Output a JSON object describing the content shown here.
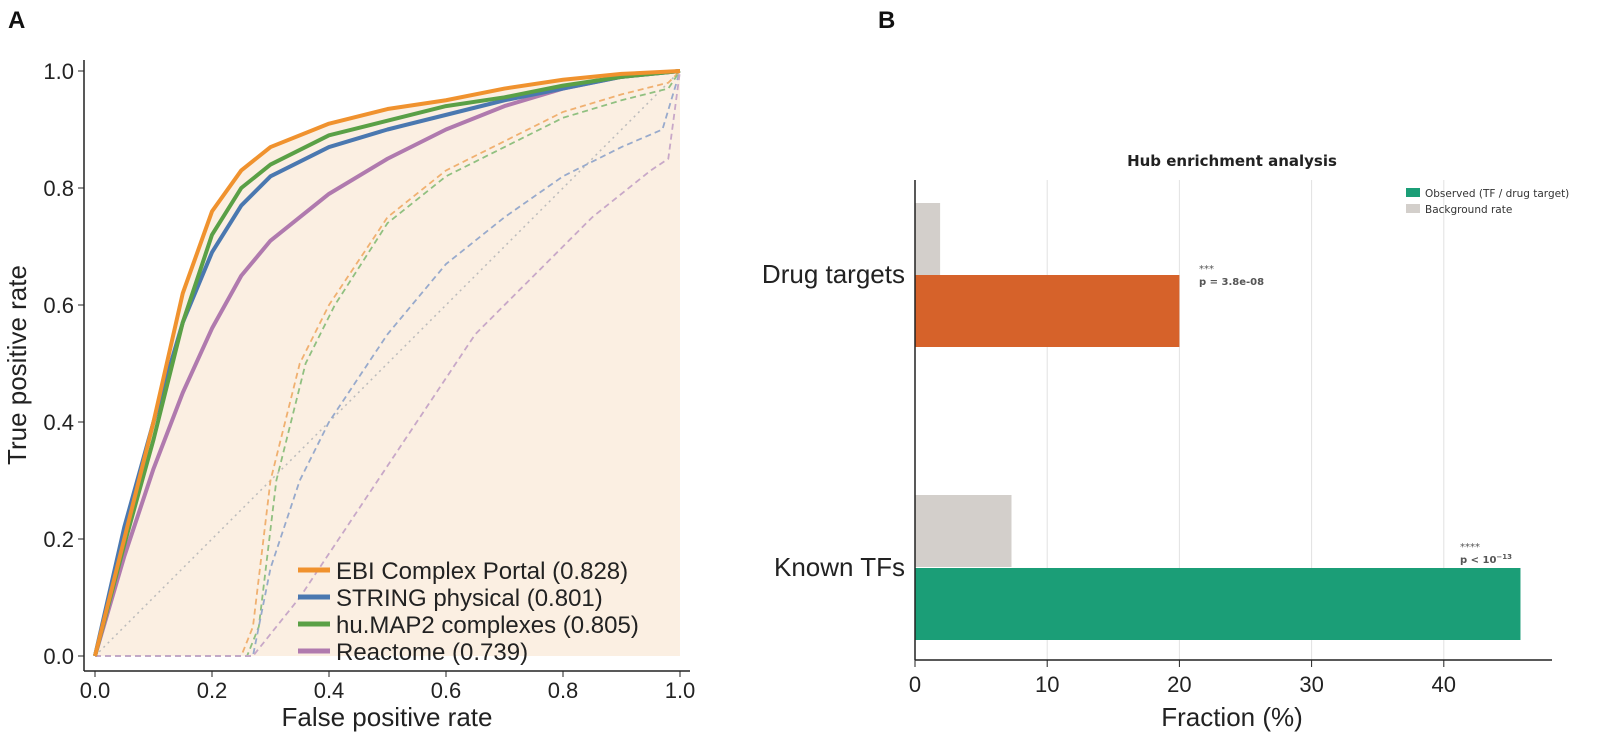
{
  "panel_labels": [
    "A",
    "B"
  ],
  "chart_data": [
    {
      "type": "line",
      "xlabel": "False positive rate",
      "ylabel": "True positive rate",
      "xlim": [
        0,
        1
      ],
      "ylim": [
        0,
        1
      ],
      "xticks": [
        "0.0",
        "0.2",
        "0.4",
        "0.6",
        "0.8",
        "1.0"
      ],
      "yticks": [
        "0.0",
        "0.2",
        "0.4",
        "0.6",
        "0.8",
        "1.0"
      ],
      "legend_position": "bottom-right",
      "series": [
        {
          "name": "EBI Complex Portal (0.828)",
          "color": "#F0922E",
          "style": "solid",
          "x": [
            0,
            0.02,
            0.05,
            0.1,
            0.15,
            0.2,
            0.25,
            0.3,
            0.4,
            0.5,
            0.6,
            0.7,
            0.8,
            0.9,
            1
          ],
          "y": [
            0,
            0.08,
            0.2,
            0.4,
            0.62,
            0.76,
            0.83,
            0.87,
            0.91,
            0.935,
            0.95,
            0.97,
            0.985,
            0.995,
            1
          ]
        },
        {
          "name": "STRING physical (0.801)",
          "color": "#4A78B0",
          "style": "solid",
          "x": [
            0,
            0.05,
            0.1,
            0.15,
            0.2,
            0.25,
            0.3,
            0.4,
            0.5,
            0.6,
            0.7,
            0.8,
            0.9,
            1
          ],
          "y": [
            0,
            0.22,
            0.4,
            0.57,
            0.69,
            0.77,
            0.82,
            0.87,
            0.9,
            0.925,
            0.95,
            0.97,
            0.99,
            1
          ]
        },
        {
          "name": "hu.MAP2 complexes (0.805)",
          "color": "#5AA046",
          "style": "solid",
          "x": [
            0,
            0.05,
            0.1,
            0.15,
            0.2,
            0.25,
            0.3,
            0.4,
            0.5,
            0.6,
            0.7,
            0.8,
            0.9,
            1
          ],
          "y": [
            0,
            0.19,
            0.37,
            0.57,
            0.72,
            0.8,
            0.84,
            0.89,
            0.915,
            0.94,
            0.955,
            0.975,
            0.99,
            1
          ]
        },
        {
          "name": "Reactome (0.739)",
          "color": "#B07AAE",
          "style": "solid",
          "x": [
            0,
            0.05,
            0.1,
            0.15,
            0.2,
            0.25,
            0.3,
            0.4,
            0.5,
            0.6,
            0.7,
            0.8,
            0.9,
            1
          ],
          "y": [
            0,
            0.17,
            0.32,
            0.45,
            0.56,
            0.65,
            0.71,
            0.79,
            0.85,
            0.9,
            0.94,
            0.97,
            0.99,
            1
          ]
        }
      ],
      "null_series": [
        {
          "color": "#F0B070",
          "x": [
            0,
            0.25,
            0.27,
            0.3,
            0.35,
            0.4,
            0.5,
            0.6,
            0.7,
            0.8,
            0.9,
            0.98,
            1
          ],
          "y": [
            0,
            0,
            0.05,
            0.3,
            0.5,
            0.6,
            0.75,
            0.83,
            0.88,
            0.93,
            0.96,
            0.98,
            1
          ]
        },
        {
          "color": "#90C080",
          "x": [
            0,
            0.26,
            0.28,
            0.31,
            0.36,
            0.41,
            0.5,
            0.6,
            0.7,
            0.8,
            0.9,
            0.98,
            1
          ],
          "y": [
            0,
            0,
            0.05,
            0.3,
            0.5,
            0.6,
            0.74,
            0.82,
            0.87,
            0.92,
            0.95,
            0.97,
            1
          ]
        },
        {
          "color": "#98AACC",
          "x": [
            0,
            0.27,
            0.3,
            0.35,
            0.4,
            0.5,
            0.6,
            0.7,
            0.8,
            0.9,
            0.97,
            1
          ],
          "y": [
            0,
            0,
            0.15,
            0.3,
            0.4,
            0.55,
            0.67,
            0.75,
            0.82,
            0.87,
            0.9,
            1
          ]
        },
        {
          "color": "#C8A8C8",
          "x": [
            0,
            0.27,
            0.35,
            0.45,
            0.55,
            0.65,
            0.75,
            0.85,
            0.95,
            0.98,
            1
          ],
          "y": [
            0,
            0,
            0.1,
            0.25,
            0.4,
            0.55,
            0.65,
            0.75,
            0.83,
            0.85,
            1
          ]
        }
      ]
    },
    {
      "type": "bar",
      "orientation": "horizontal",
      "title": "Hub enrichment analysis",
      "xlabel": "Fraction (%)",
      "xlim": [
        0,
        47
      ],
      "xticks": [
        "0",
        "10",
        "20",
        "30",
        "40"
      ],
      "categories": [
        "Drug targets",
        "Known TFs"
      ],
      "series": [
        {
          "name": "Background rate",
          "color": "#D3CFCB",
          "values": [
            1.9,
            7.3
          ]
        },
        {
          "name": "Observed (TF / drug target)",
          "color": "#1B9E77",
          "values": [
            20.0,
            45.8
          ],
          "bar_colors": [
            "#D6622A",
            "#1B9E77"
          ]
        }
      ],
      "annotations": [
        {
          "stars": "***",
          "text": "p = 3.8e-08"
        },
        {
          "stars": "****",
          "text": "p < 10",
          "exp": "−13"
        }
      ],
      "legend_position": "top-right"
    }
  ]
}
